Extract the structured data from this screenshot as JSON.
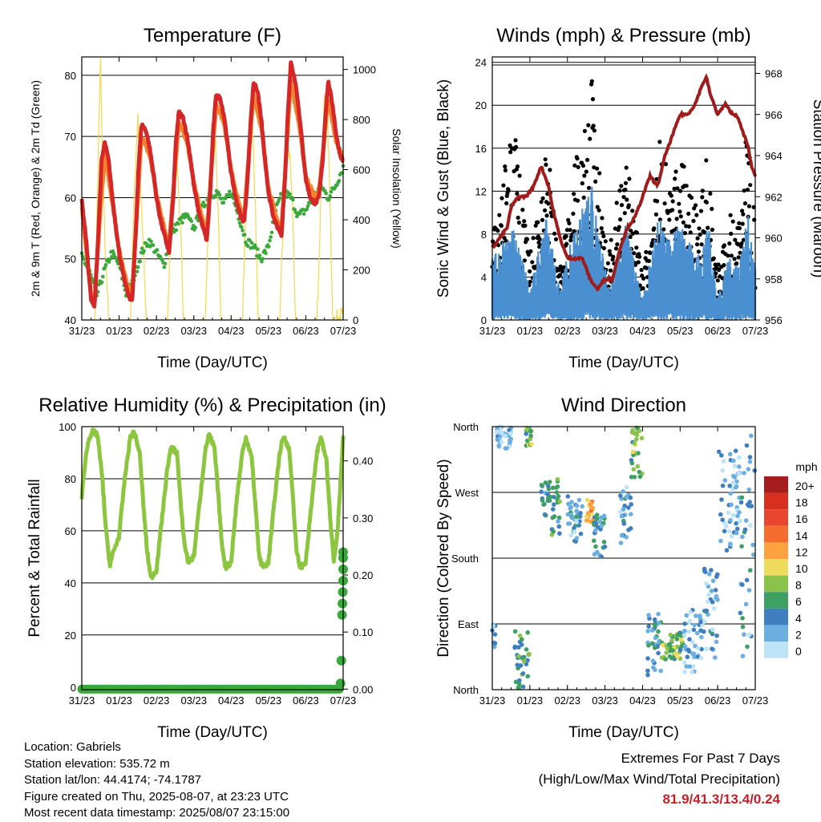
{
  "chart_data": [
    {
      "type": "line",
      "title": "Temperature (F)",
      "xlabel": "Time (Day/UTC)",
      "ylabel": "2m & 9m T (Red, Orange) & 2m Td (Green)",
      "ylabel_right": "Solar Insolation (Yellow)",
      "ylim": [
        40,
        83
      ],
      "ylim_right": [
        0,
        1050
      ],
      "yticks": [
        40,
        50,
        60,
        70,
        80
      ],
      "yticks_right": [
        0,
        200,
        400,
        600,
        800,
        1000
      ],
      "xticks": [
        "31/23",
        "01/23",
        "02/23",
        "03/23",
        "04/23",
        "05/23",
        "06/23",
        "07/23"
      ],
      "grid": "horizontal",
      "series": [
        {
          "name": "2m T",
          "color": "#d62728",
          "axis": "left",
          "x_day": [
            0,
            0.12,
            0.18,
            0.25,
            0.34,
            0.45,
            0.53,
            0.62,
            0.72,
            0.82,
            0.92,
            1.0,
            1.12,
            1.25,
            1.35,
            1.45,
            1.52,
            1.6,
            1.72,
            1.82,
            1.92,
            2.0,
            2.12,
            2.25,
            2.34,
            2.45,
            2.52,
            2.6,
            2.72,
            2.82,
            2.92,
            3.0,
            3.12,
            3.25,
            3.35,
            3.45,
            3.52,
            3.6,
            3.72,
            3.82,
            3.92,
            4.0,
            4.12,
            4.25,
            4.35,
            4.45,
            4.52,
            4.6,
            4.72,
            4.82,
            4.92,
            5.0,
            5.12,
            5.25,
            5.35,
            5.45,
            5.52,
            5.6,
            5.72,
            5.82,
            5.92,
            6.0,
            6.12,
            6.25,
            6.35,
            6.45,
            6.52,
            6.6,
            6.72,
            6.82,
            6.92,
            7.0
          ],
          "y": [
            59.5,
            53,
            48,
            43.5,
            42,
            55,
            66,
            69,
            66,
            60,
            55,
            51,
            47,
            44,
            43,
            55,
            65,
            72,
            71,
            68,
            64,
            60,
            56,
            53,
            51,
            60,
            69,
            74,
            73,
            70,
            66,
            62,
            58,
            55,
            53,
            62,
            71,
            77,
            76,
            73,
            68,
            64,
            60,
            57,
            56,
            64,
            72,
            79,
            77,
            72,
            65,
            61,
            57,
            55,
            54,
            64,
            74,
            82,
            79,
            74,
            68,
            63,
            60,
            59,
            60,
            66,
            73,
            79,
            75,
            70,
            67,
            66
          ]
        },
        {
          "name": "9m T",
          "color": "#f5822a",
          "axis": "left",
          "x_day": [
            0,
            0.25,
            0.34,
            0.5,
            0.62,
            0.82,
            1.0,
            1.25,
            1.35,
            1.6,
            1.82,
            2.0,
            2.25,
            2.34,
            2.6,
            2.82,
            3.0,
            3.25,
            3.35,
            3.6,
            3.82,
            4.0,
            4.25,
            4.35,
            4.6,
            4.82,
            5.0,
            5.25,
            5.35,
            5.6,
            5.82,
            6.0,
            6.25,
            6.35,
            6.6,
            6.82,
            7.0
          ],
          "y": [
            58.5,
            44,
            43,
            58,
            67,
            59,
            51.5,
            45,
            44.5,
            70,
            67,
            60.5,
            54,
            52.5,
            72.5,
            69,
            62.5,
            56,
            54.5,
            75.5,
            72,
            64.5,
            58,
            57,
            77,
            71,
            61.5,
            56,
            55,
            79,
            72,
            63.5,
            60,
            61,
            76,
            69,
            66.5
          ]
        },
        {
          "name": "2m Td",
          "color": "#3aa83a",
          "axis": "left",
          "x_day": [
            0,
            0.2,
            0.4,
            0.6,
            0.8,
            1.0,
            1.2,
            1.4,
            1.6,
            1.8,
            2.0,
            2.2,
            2.4,
            2.6,
            2.8,
            3.0,
            3.2,
            3.4,
            3.6,
            3.8,
            4.0,
            4.2,
            4.4,
            4.6,
            4.8,
            5.0,
            5.2,
            5.4,
            5.6,
            5.8,
            6.0,
            6.2,
            6.4,
            6.6,
            6.8,
            7.0
          ],
          "y": [
            50.5,
            48,
            44,
            48,
            51,
            49,
            44,
            47,
            51,
            53,
            51,
            49,
            54,
            56,
            57,
            55,
            58,
            60,
            61,
            59,
            61,
            57,
            53,
            52,
            50,
            52,
            58,
            61,
            60,
            57,
            58,
            60,
            62,
            60,
            62,
            65
          ]
        },
        {
          "name": "Solar Insolation",
          "color": "#f6d84a",
          "axis": "right",
          "x_day": [
            0,
            0.35,
            0.42,
            0.5,
            0.56,
            0.64,
            0.72,
            1.3,
            1.38,
            1.5,
            1.58,
            1.66,
            1.72,
            2.3,
            2.38,
            2.5,
            2.58,
            2.66,
            2.72,
            3.3,
            3.38,
            3.5,
            3.58,
            3.66,
            3.72,
            4.3,
            4.38,
            4.5,
            4.58,
            4.66,
            4.72,
            5.3,
            5.38,
            5.5,
            5.58,
            5.66,
            5.72,
            6.3,
            6.38,
            6.5,
            6.58,
            6.66,
            6.72,
            7.0
          ],
          "y": [
            0,
            0,
            500,
            1040,
            600,
            220,
            0,
            0,
            400,
            820,
            520,
            260,
            0,
            0,
            350,
            730,
            560,
            300,
            0,
            0,
            350,
            720,
            700,
            420,
            0,
            0,
            380,
            860,
            760,
            380,
            0,
            0,
            330,
            700,
            650,
            360,
            0,
            0,
            380,
            900,
            820,
            420,
            0,
            30
          ]
        }
      ]
    },
    {
      "type": "scatter",
      "title": "Winds (mph) & Pressure (mb)",
      "xlabel": "Time (Day/UTC)",
      "ylabel": "Sonic Wind & Gust (Blue, Black)",
      "ylabel_right": "Station Pressure (Maroon)",
      "ylim": [
        0,
        24.5
      ],
      "ylim_right": [
        956,
        968.8
      ],
      "yticks": [
        0,
        4,
        8,
        12,
        16,
        20,
        24
      ],
      "yticks_right": [
        956,
        958,
        960,
        962,
        964,
        966,
        968
      ],
      "xticks": [
        "31/23",
        "01/23",
        "02/23",
        "03/23",
        "04/23",
        "05/23",
        "06/23",
        "07/23"
      ],
      "grid": "horizontal",
      "series": [
        {
          "name": "Gust",
          "color": "#000000",
          "marker": "dot",
          "peak_day": [
            0.05,
            0.55,
            1.0,
            1.45,
            1.8,
            2.2,
            2.65,
            3.1,
            3.55,
            4.0,
            4.45,
            4.75,
            5.0,
            5.3,
            5.55,
            5.75,
            6.0,
            6.3,
            6.55,
            6.8,
            7.0
          ],
          "peak_gust": [
            8.5,
            19,
            6,
            17,
            5,
            15,
            22.8,
            6,
            16.5,
            4,
            17,
            14,
            15.8,
            12,
            11,
            16.5,
            5,
            10,
            9.5,
            19,
            10
          ]
        },
        {
          "name": "Sonic Wind",
          "color": "#4a90d0",
          "marker": "bar",
          "peak_day": [
            0.05,
            0.55,
            1.0,
            1.45,
            1.8,
            2.2,
            2.65,
            3.1,
            3.55,
            4.0,
            4.45,
            4.75,
            5.0,
            5.3,
            5.55,
            5.75,
            6.0,
            6.3,
            6.55,
            6.8,
            7.0
          ],
          "peak_wind": [
            6,
            9,
            3,
            10,
            3,
            9,
            12.5,
            3,
            9,
            2,
            10,
            8,
            9,
            7,
            6,
            9,
            2,
            6,
            5,
            10,
            5
          ]
        },
        {
          "name": "Station Pressure",
          "color": "#a01c1c",
          "axis": "right",
          "x_day": [
            0,
            0.2,
            0.4,
            0.5,
            0.7,
            0.9,
            1.1,
            1.3,
            1.5,
            1.6,
            1.8,
            2.0,
            2.2,
            2.4,
            2.6,
            2.8,
            3.0,
            3.2,
            3.4,
            3.6,
            3.8,
            4.0,
            4.2,
            4.4,
            4.6,
            4.8,
            5.0,
            5.2,
            5.4,
            5.6,
            5.7,
            5.8,
            6.0,
            6.2,
            6.4,
            6.5,
            6.6,
            6.8,
            6.9,
            7.0
          ],
          "y": [
            959.5,
            960,
            960.5,
            961.5,
            962,
            962,
            962.5,
            963.5,
            962.5,
            961.5,
            960,
            959,
            959,
            959,
            958,
            957.5,
            958,
            958,
            959.5,
            960.5,
            961,
            962,
            963,
            962.5,
            964,
            965,
            966,
            966,
            966.5,
            967.5,
            967.8,
            967,
            966,
            966.5,
            966,
            966,
            965.5,
            964.5,
            963.5,
            963
          ]
        }
      ]
    },
    {
      "type": "line",
      "title": "Relative Humidity (%) & Precipitation (in)",
      "xlabel": "Time (Day/UTC)",
      "ylabel": "Percent & Total Rainfall",
      "ylim": [
        -1,
        100
      ],
      "ylim_right": [
        -0.001,
        0.46
      ],
      "yticks": [
        0,
        20,
        40,
        60,
        80,
        100
      ],
      "yticks_right": [
        "0.00",
        "0.10",
        "0.20",
        "0.30",
        "0.40"
      ],
      "xticks": [
        "31/23",
        "01/23",
        "02/23",
        "03/23",
        "04/23",
        "05/23",
        "06/23",
        "07/23"
      ],
      "grid": "horizontal",
      "series": [
        {
          "name": "Relative Humidity",
          "color": "#8cc63f",
          "axis": "left",
          "x_day": [
            0,
            0.1,
            0.2,
            0.3,
            0.42,
            0.55,
            0.65,
            0.75,
            0.85,
            1.0,
            1.15,
            1.3,
            1.4,
            1.55,
            1.65,
            1.75,
            1.85,
            2.0,
            2.15,
            2.3,
            2.4,
            2.55,
            2.65,
            2.75,
            2.85,
            3.0,
            3.15,
            3.3,
            3.4,
            3.55,
            3.65,
            3.75,
            3.85,
            4.0,
            4.15,
            4.3,
            4.4,
            4.55,
            4.65,
            4.75,
            4.85,
            5.0,
            5.15,
            5.3,
            5.4,
            5.55,
            5.65,
            5.75,
            5.85,
            6.0,
            6.15,
            6.3,
            6.4,
            6.55,
            6.65,
            6.75,
            6.85,
            7.0
          ],
          "y": [
            73,
            88,
            96,
            98,
            97,
            80,
            60,
            47,
            52,
            58,
            80,
            96,
            98,
            90,
            70,
            52,
            42,
            45,
            65,
            85,
            92,
            90,
            70,
            55,
            48,
            50,
            70,
            90,
            97,
            92,
            75,
            55,
            46,
            48,
            72,
            90,
            96,
            88,
            70,
            50,
            46,
            48,
            70,
            90,
            96,
            92,
            74,
            52,
            46,
            48,
            70,
            90,
            96,
            88,
            66,
            48,
            60,
            96
          ]
        },
        {
          "name": "Precipitation",
          "color": "#3aa83a",
          "axis": "right",
          "marker": "dot",
          "x_day": [
            0,
            1,
            2,
            3,
            4,
            5,
            6,
            6.9,
            6.93,
            6.95,
            6.97,
            6.98,
            6.99,
            7.0,
            7.0,
            7.0,
            7.0
          ],
          "y": [
            0,
            0,
            0,
            0,
            0,
            0,
            0,
            0,
            0.01,
            0.05,
            0.13,
            0.15,
            0.17,
            0.19,
            0.21,
            0.23,
            0.24
          ]
        }
      ]
    },
    {
      "type": "scatter",
      "title": "Wind Direction",
      "xlabel": "Time (Day/UTC)",
      "ylabel": "Direction (Colored By Speed)",
      "yticks": [
        "North",
        "East",
        "South",
        "West",
        "North"
      ],
      "ytick_degrees": [
        0,
        90,
        180,
        270,
        360
      ],
      "xticks": [
        "31/23",
        "01/23",
        "02/23",
        "03/23",
        "04/23",
        "05/23",
        "06/23",
        "07/23"
      ],
      "grid": "horizontal",
      "legend": {
        "title": "mph",
        "labels": [
          "20+",
          "18",
          "16",
          "14",
          "12",
          "10",
          "8",
          "6",
          "4",
          "2",
          "0"
        ],
        "colors": [
          "#a51d1d",
          "#d7301f",
          "#e8462e",
          "#f46d2e",
          "#fca33f",
          "#f0dc5c",
          "#8bc34a",
          "#3ea062",
          "#3f7fbf",
          "#6baee0",
          "#bde3f7"
        ]
      },
      "clusters": [
        {
          "day": [
            0,
            0.1
          ],
          "deg": [
            50,
            90
          ],
          "speed": 3
        },
        {
          "day": [
            0.1,
            0.5
          ],
          "deg": [
            330,
            360
          ],
          "speed": 2
        },
        {
          "day": [
            0.6,
            1.0
          ],
          "deg": [
            0,
            80
          ],
          "speed": 7
        },
        {
          "day": [
            0.9,
            1.05
          ],
          "deg": [
            330,
            360
          ],
          "speed": 8
        },
        {
          "day": [
            1.3,
            1.8
          ],
          "deg": [
            210,
            290
          ],
          "speed": 6
        },
        {
          "day": [
            2.0,
            2.4
          ],
          "deg": [
            200,
            270
          ],
          "speed": 4
        },
        {
          "day": [
            2.5,
            2.7
          ],
          "deg": [
            230,
            260
          ],
          "speed": 12
        },
        {
          "day": [
            2.7,
            3.0
          ],
          "deg": [
            180,
            240
          ],
          "speed": 5
        },
        {
          "day": [
            3.4,
            3.7
          ],
          "deg": [
            200,
            280
          ],
          "speed": 4
        },
        {
          "day": [
            3.7,
            4.0
          ],
          "deg": [
            290,
            360
          ],
          "speed": 8
        },
        {
          "day": [
            4.1,
            4.5
          ],
          "deg": [
            20,
            110
          ],
          "speed": 5
        },
        {
          "day": [
            4.5,
            5.1
          ],
          "deg": [
            40,
            80
          ],
          "speed": 8
        },
        {
          "day": [
            5.1,
            5.6
          ],
          "deg": [
            20,
            110
          ],
          "speed": 3
        },
        {
          "day": [
            5.6,
            6.0
          ],
          "deg": [
            40,
            170
          ],
          "speed": 4
        },
        {
          "day": [
            6.0,
            6.6
          ],
          "deg": [
            180,
            330
          ],
          "speed": 3
        },
        {
          "day": [
            6.6,
            7.0
          ],
          "deg": [
            40,
            360
          ],
          "speed": 4
        }
      ]
    }
  ],
  "footer": {
    "location": "Location: Gabriels",
    "elevation": "Station elevation: 535.72 m",
    "latlon": "Station lat/lon: 44.4174; -74.1787",
    "created": "Figure created on Thu, 2025-08-07, at 23:23 UTC",
    "latest": "Most recent data timestamp: 2025/08/07 23:15:00"
  },
  "extremes": {
    "title": "Extremes For Past 7 Days",
    "subtitle": "(High/Low/Max Wind/Total Precipitation)",
    "values": "81.9/41.3/13.4/0.24",
    "color": "#c8202a"
  }
}
